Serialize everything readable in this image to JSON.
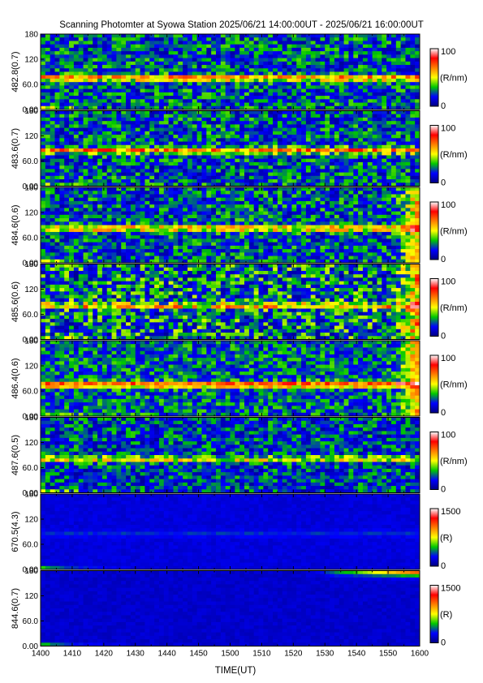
{
  "chart_data": {
    "type": "heatmap",
    "title": "Scanning Photomter at Syowa Station 2025/06/21 14:00:00UT - 2025/06/21 16:00:00UT",
    "xlabel": "TIME(UT)",
    "x_ticks": [
      "1400",
      "1410",
      "1420",
      "1430",
      "1440",
      "1450",
      "1500",
      "1510",
      "1520",
      "1530",
      "1540",
      "1550",
      "1600"
    ],
    "xlim": [
      "1400",
      "1600"
    ],
    "y_ticks": [
      "0.00",
      "60.0",
      "120",
      "180"
    ],
    "ylim": [
      0,
      180
    ],
    "colormap": [
      "#00007f",
      "#0000ff",
      "#00c800",
      "#ffff00",
      "#ff8000",
      "#ff0000",
      "#ffffff"
    ],
    "panels": [
      {
        "label": "482.8(0.7)",
        "cbar_max": "100",
        "cbar_min": "0",
        "unit": "(R/nm)",
        "band_y": 75,
        "band_strength": 0.45,
        "noise": 0.35,
        "base": 0.22,
        "edge_glow": 0,
        "top_glow": 0
      },
      {
        "label": "483.6(0.7)",
        "cbar_max": "100",
        "cbar_min": "0",
        "unit": "(R/nm)",
        "band_y": 85,
        "band_strength": 0.45,
        "noise": 0.35,
        "base": 0.22,
        "edge_glow": 0,
        "top_glow": 0
      },
      {
        "label": "484.6(0.6)",
        "cbar_max": "100",
        "cbar_min": "0",
        "unit": "(R/nm)",
        "band_y": 82,
        "band_strength": 0.4,
        "noise": 0.35,
        "base": 0.22,
        "edge_glow": 0.35,
        "top_glow": 0
      },
      {
        "label": "485.6(0.6)",
        "cbar_max": "100",
        "cbar_min": "0",
        "unit": "(R/nm)",
        "band_y": 80,
        "band_strength": 0.35,
        "noise": 0.45,
        "base": 0.25,
        "edge_glow": 0.35,
        "top_glow": 0
      },
      {
        "label": "486.4(0.6)",
        "cbar_max": "100",
        "cbar_min": "0",
        "unit": "(R/nm)",
        "band_y": 75,
        "band_strength": 0.55,
        "noise": 0.3,
        "base": 0.24,
        "edge_glow": 0.35,
        "top_glow": 0
      },
      {
        "label": "487.6(0.5)",
        "cbar_max": "100",
        "cbar_min": "0",
        "unit": "(R/nm)",
        "band_y": 80,
        "band_strength": 0.3,
        "noise": 0.33,
        "base": 0.2,
        "edge_glow": 0,
        "top_glow": 0
      },
      {
        "label": "670.5(4.3)",
        "cbar_max": "1500",
        "cbar_min": "0",
        "unit": "(R)",
        "band_y": 85,
        "band_strength": 0.08,
        "noise": 0.05,
        "base": 0.12,
        "edge_glow": 0,
        "top_glow": 0
      },
      {
        "label": "844.6(0.7)",
        "cbar_max": "1500",
        "cbar_min": "0",
        "unit": "(R)",
        "band_y": 0,
        "band_strength": 0,
        "noise": 0.05,
        "base": 0.1,
        "edge_glow": 0,
        "top_glow": 0.7
      }
    ]
  }
}
